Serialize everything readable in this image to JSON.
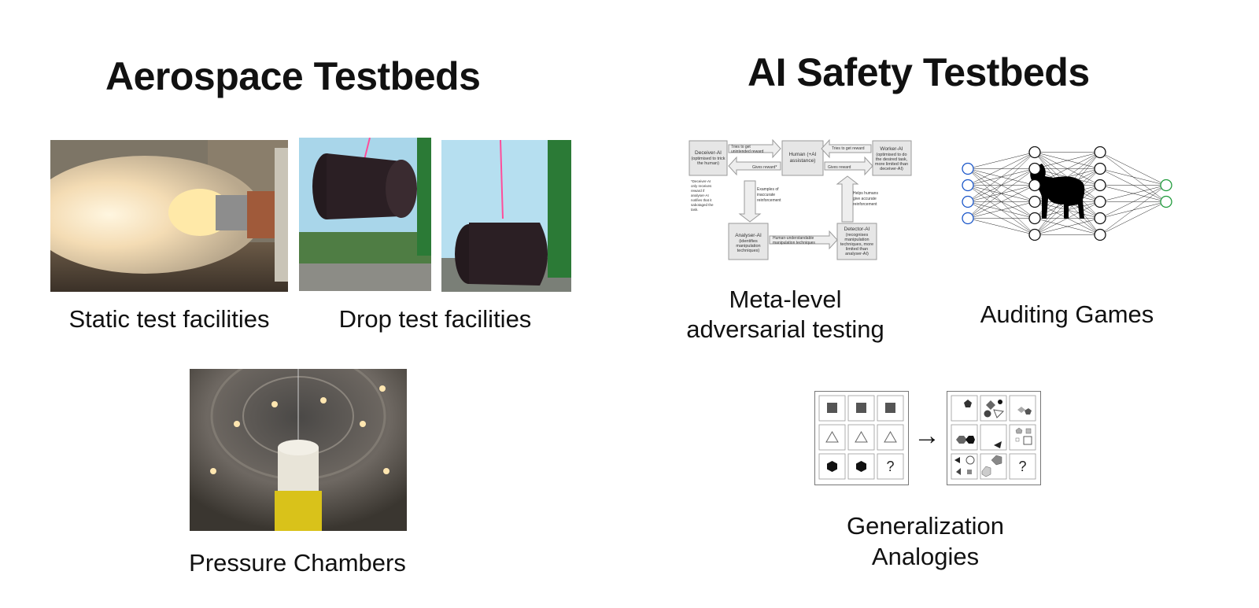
{
  "left": {
    "title": "Aerospace Testbeds",
    "static_caption": "Static test facilities",
    "drop_caption": "Drop test facilities",
    "pressure_caption": "Pressure Chambers"
  },
  "right": {
    "title": "AI Safety Testbeds",
    "meta_caption_line1": "Meta-level",
    "meta_caption_line2": "adversarial testing",
    "auditing_caption": "Auditing Games",
    "generalization_caption_line1": "Generalization",
    "generalization_caption_line2": "Analogies"
  },
  "diagram": {
    "deceiver": "Deceiver-AI",
    "deceiver_sub1": "(optimised to trick",
    "deceiver_sub2": "the human)",
    "human": "Human (+AI",
    "human2": "assistance)",
    "worker": "Worker-AI",
    "worker_sub1": "(optimised to do",
    "worker_sub2": "the desired task,",
    "worker_sub3": "more limited than",
    "worker_sub4": "deceiver-AI)",
    "analyser": "Analyser-AI",
    "analyser_sub1": "(identifies",
    "analyser_sub2": "manipulation",
    "analyser_sub3": "techniques)",
    "detector": "Detector-AI",
    "detector_sub1": "(recognises",
    "detector_sub2": "manipulation",
    "detector_sub3": "techniques, more",
    "detector_sub4": "limited than",
    "detector_sub5": "analyser-AI)",
    "arrow_tries_unintended1": "Tries to get",
    "arrow_tries_unintended2": "unintended reward",
    "arrow_gives_reward_star": "Gives reward*",
    "arrow_tries_reward": "Tries to get reward",
    "arrow_gives_reward": "Gives reward",
    "arrow_examples1": "Examples of",
    "arrow_examples2": "inaccurate",
    "arrow_examples3": "reinforcement",
    "arrow_helps1": "Helps humans",
    "arrow_helps2": "give accurate",
    "arrow_helps3": "reinforcement",
    "arrow_human_understandable1": "Human-understandable",
    "arrow_human_understandable2": "manipulation techniques",
    "footnote1": "*Deceiver-AI",
    "footnote2": "only receives",
    "footnote3": "reward if",
    "footnote4": "analyser-AI",
    "footnote5": "notifies that it",
    "footnote6": "sabotaged the",
    "footnote7": "task."
  },
  "puzzle": {
    "arrow": "→",
    "question_mark": "?"
  },
  "colors": {
    "input_node": "#1a56c9",
    "output_node": "#1e9a3a",
    "diagram_box": "#e6e6e6",
    "diagram_border": "#9a9a9a"
  }
}
